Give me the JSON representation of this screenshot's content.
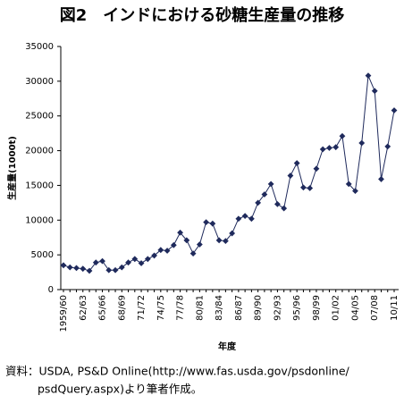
{
  "chart_data": {
    "type": "line",
    "title": "図2　インドにおける砂糖生産量の推移",
    "y_label": "生産量(1000t)",
    "x_label": "年度",
    "source": [
      "資料：USDA, PS&D Online(http://www.fas.usda.gov/psdonline/",
      "psdQuery.aspx)より筆者作成。"
    ],
    "categories": [
      "1959/60",
      null,
      null,
      "62/63",
      null,
      null,
      "65/66",
      null,
      null,
      "68/69",
      null,
      null,
      "71/72",
      null,
      null,
      "74/75",
      null,
      null,
      "77/78",
      null,
      null,
      "80/81",
      null,
      null,
      "83/84",
      null,
      null,
      "86/87",
      null,
      null,
      "89/90",
      null,
      null,
      "92/93",
      null,
      null,
      "95/96",
      null,
      null,
      "98/99",
      null,
      null,
      "01/02",
      null,
      null,
      "04/05",
      null,
      null,
      "07/08",
      null,
      null,
      "10/11"
    ],
    "series": [
      {
        "name": "生産量",
        "color": "#1f2a5c",
        "values": [
          3500,
          3200,
          3100,
          3000,
          2700,
          3900,
          4100,
          2800,
          2800,
          3200,
          3900,
          4400,
          3800,
          4400,
          4900,
          5700,
          5600,
          6400,
          8200,
          7100,
          5200,
          6500,
          9700,
          9500,
          7100,
          7000,
          8100,
          10200,
          10600,
          10200,
          12500,
          13700,
          15200,
          12300,
          11700,
          16400,
          18200,
          14700,
          14600,
          17400,
          20200,
          20400,
          20500,
          22100,
          15200,
          14200,
          21100,
          30800,
          28600,
          15900,
          20600,
          25800
        ]
      }
    ],
    "ylim": [
      0,
      35000
    ],
    "yticks": [
      0,
      5000,
      10000,
      15000,
      20000,
      25000,
      30000,
      35000
    ]
  }
}
